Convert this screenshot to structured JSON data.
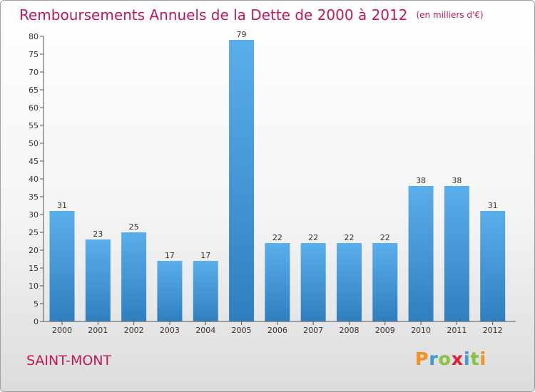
{
  "header": {
    "title": "Remboursements Annuels de la Dette de 2000 à 2012",
    "subtitle": "(en milliers d'€)"
  },
  "footer": {
    "commune": "SAINT-MONT",
    "logo_text": "Proxiti"
  },
  "colors": {
    "accent": "#c0185a",
    "bar_light": "#5aaeea",
    "bar_dark": "#2f7fc0",
    "logo_letters": [
      "#f7941d",
      "#3b9fd6",
      "#8cc63f",
      "#e2203b",
      "#3b9fd6",
      "#8cc63f",
      "#f7941d"
    ]
  },
  "chart_data": {
    "type": "bar",
    "title": "Remboursements Annuels de la Dette de 2000 à 2012",
    "subtitle": "(en milliers d'€)",
    "categories": [
      "2000",
      "2001",
      "2002",
      "2003",
      "2004",
      "2005",
      "2006",
      "2007",
      "2008",
      "2009",
      "2010",
      "2011",
      "2012"
    ],
    "values": [
      31,
      23,
      25,
      17,
      17,
      79,
      22,
      22,
      22,
      22,
      38,
      38,
      31
    ],
    "ylim": [
      0,
      80
    ],
    "yticks": [
      0,
      5,
      10,
      15,
      20,
      25,
      30,
      35,
      40,
      45,
      50,
      55,
      60,
      65,
      70,
      75,
      80
    ],
    "grid": false,
    "data_labels": true
  }
}
